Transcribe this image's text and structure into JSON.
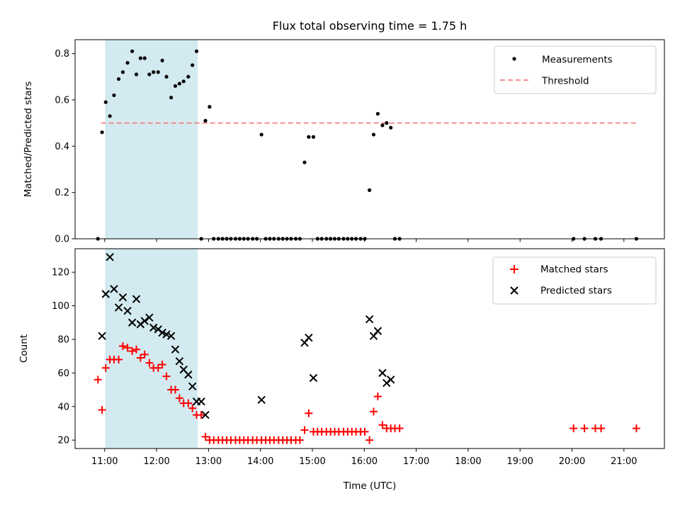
{
  "chart_data": [
    {
      "type": "scatter",
      "title": "Flux total observing time = 1.75 h",
      "ylabel": "Matched/Predicted stars",
      "xlabel": "",
      "xlim": [
        10.43,
        21.78
      ],
      "ylim": [
        0,
        0.86
      ],
      "yticks": [
        0.0,
        0.2,
        0.4,
        0.6,
        0.8
      ],
      "ytick_labels": [
        "0.0",
        "0.2",
        "0.4",
        "0.6",
        "0.8"
      ],
      "shaded_interval": [
        11.02,
        12.78
      ],
      "shade_color": "#d3eaf0",
      "legend_position": "top-right",
      "legend": [
        "Measurements",
        "Threshold"
      ],
      "threshold": {
        "name": "Threshold",
        "y": 0.5,
        "x_range": [
          10.93,
          21.25
        ],
        "color": "#f08080"
      },
      "series": [
        {
          "name": "Measurements",
          "color": "#000000",
          "x": [
            10.87,
            10.95,
            11.02,
            11.1,
            11.18,
            11.27,
            11.35,
            11.44,
            11.53,
            11.61,
            11.69,
            11.77,
            11.86,
            11.94,
            12.03,
            12.11,
            12.19,
            12.28,
            12.36,
            12.44,
            12.52,
            12.61,
            12.69,
            12.77,
            12.86,
            12.94,
            13.02,
            13.1,
            13.19,
            13.27,
            13.35,
            13.43,
            13.52,
            13.6,
            13.68,
            13.76,
            13.85,
            13.93,
            14.02,
            14.1,
            14.18,
            14.26,
            14.35,
            14.43,
            14.51,
            14.59,
            14.68,
            14.76,
            14.85,
            14.93,
            15.02,
            15.1,
            15.18,
            15.27,
            15.35,
            15.43,
            15.51,
            15.6,
            15.68,
            15.76,
            15.84,
            15.93,
            16.01,
            16.1,
            16.18,
            16.26,
            16.35,
            16.43,
            16.51,
            16.59,
            16.68,
            20.03,
            20.24,
            20.45,
            20.56,
            21.24
          ],
          "y": [
            0.0,
            0.46,
            0.59,
            0.53,
            0.62,
            0.69,
            0.72,
            0.76,
            0.81,
            0.71,
            0.78,
            0.78,
            0.71,
            0.72,
            0.72,
            0.77,
            0.7,
            0.61,
            0.66,
            0.67,
            0.68,
            0.7,
            0.75,
            0.81,
            0.0,
            0.51,
            0.57,
            0.0,
            0.0,
            0.0,
            0.0,
            0.0,
            0.0,
            0.0,
            0.0,
            0.0,
            0.0,
            0.0,
            0.45,
            0.0,
            0.0,
            0.0,
            0.0,
            0.0,
            0.0,
            0.0,
            0.0,
            0.0,
            0.33,
            0.44,
            0.44,
            0.0,
            0.0,
            0.0,
            0.0,
            0.0,
            0.0,
            0.0,
            0.0,
            0.0,
            0.0,
            0.0,
            0.0,
            0.21,
            0.45,
            0.54,
            0.49,
            0.5,
            0.48,
            0.0,
            0.0,
            0.0,
            0.0,
            0.0,
            0.0,
            0.0
          ]
        }
      ]
    },
    {
      "type": "scatter",
      "title": "",
      "ylabel": "Count",
      "xlabel": "Time (UTC)",
      "xlim": [
        10.43,
        21.78
      ],
      "ylim": [
        15,
        134
      ],
      "yticks": [
        20,
        40,
        60,
        80,
        100,
        120
      ],
      "ytick_labels": [
        "20",
        "40",
        "60",
        "80",
        "100",
        "120"
      ],
      "xticks": [
        11,
        12,
        13,
        14,
        15,
        16,
        17,
        18,
        19,
        20,
        21
      ],
      "xtick_labels": [
        "11:00",
        "12:00",
        "13:00",
        "14:00",
        "15:00",
        "16:00",
        "17:00",
        "18:00",
        "19:00",
        "20:00",
        "21:00"
      ],
      "shaded_interval": [
        11.02,
        12.78
      ],
      "shade_color": "#d3eaf0",
      "legend_position": "top-right",
      "legend": [
        "Matched stars",
        "Predicted stars"
      ],
      "series": [
        {
          "name": "Matched stars",
          "marker": "+",
          "color": "#ff0000",
          "x": [
            10.87,
            10.95,
            11.02,
            11.1,
            11.18,
            11.27,
            11.35,
            11.44,
            11.53,
            11.61,
            11.69,
            11.77,
            11.86,
            11.94,
            12.03,
            12.11,
            12.19,
            12.28,
            12.36,
            12.44,
            12.52,
            12.61,
            12.69,
            12.77,
            12.86,
            12.94,
            13.02,
            13.1,
            13.19,
            13.27,
            13.35,
            13.43,
            13.52,
            13.6,
            13.68,
            13.76,
            13.85,
            13.93,
            14.02,
            14.1,
            14.18,
            14.26,
            14.35,
            14.43,
            14.51,
            14.59,
            14.68,
            14.76,
            14.85,
            14.93,
            15.02,
            15.1,
            15.18,
            15.27,
            15.35,
            15.43,
            15.51,
            15.6,
            15.68,
            15.76,
            15.84,
            15.93,
            16.01,
            16.1,
            16.18,
            16.26,
            16.35,
            16.43,
            16.51,
            16.59,
            16.68,
            20.03,
            20.24,
            20.45,
            20.56,
            21.24
          ],
          "y": [
            56,
            38,
            63,
            68,
            68,
            68,
            76,
            75,
            73,
            74,
            69,
            71,
            66,
            63,
            63,
            65,
            58,
            50,
            50,
            45,
            42,
            42,
            39,
            35,
            35,
            22,
            20,
            20,
            20,
            20,
            20,
            20,
            20,
            20,
            20,
            20,
            20,
            20,
            20,
            20,
            20,
            20,
            20,
            20,
            20,
            20,
            20,
            20,
            26,
            36,
            25,
            25,
            25,
            25,
            25,
            25,
            25,
            25,
            25,
            25,
            25,
            25,
            25,
            20,
            37,
            46,
            29,
            27,
            27,
            27,
            27,
            27,
            27,
            27,
            27,
            27
          ]
        },
        {
          "name": "Predicted stars",
          "marker": "x",
          "color": "#000000",
          "x": [
            10.95,
            11.02,
            11.1,
            11.18,
            11.27,
            11.35,
            11.44,
            11.53,
            11.61,
            11.69,
            11.77,
            11.86,
            11.94,
            12.03,
            12.11,
            12.19,
            12.28,
            12.36,
            12.44,
            12.52,
            12.61,
            12.69,
            12.77,
            12.86,
            12.94,
            14.02,
            14.85,
            14.93,
            15.02,
            16.1,
            16.18,
            16.26,
            16.35,
            16.43,
            16.51
          ],
          "y": [
            82,
            107,
            129,
            110,
            99,
            105,
            97,
            90,
            104,
            89,
            91,
            93,
            87,
            86,
            84,
            83,
            82,
            74,
            67,
            62,
            59,
            52,
            43,
            43,
            35,
            44,
            78,
            81,
            57,
            92,
            82,
            85,
            60,
            54,
            56
          ]
        }
      ]
    }
  ]
}
